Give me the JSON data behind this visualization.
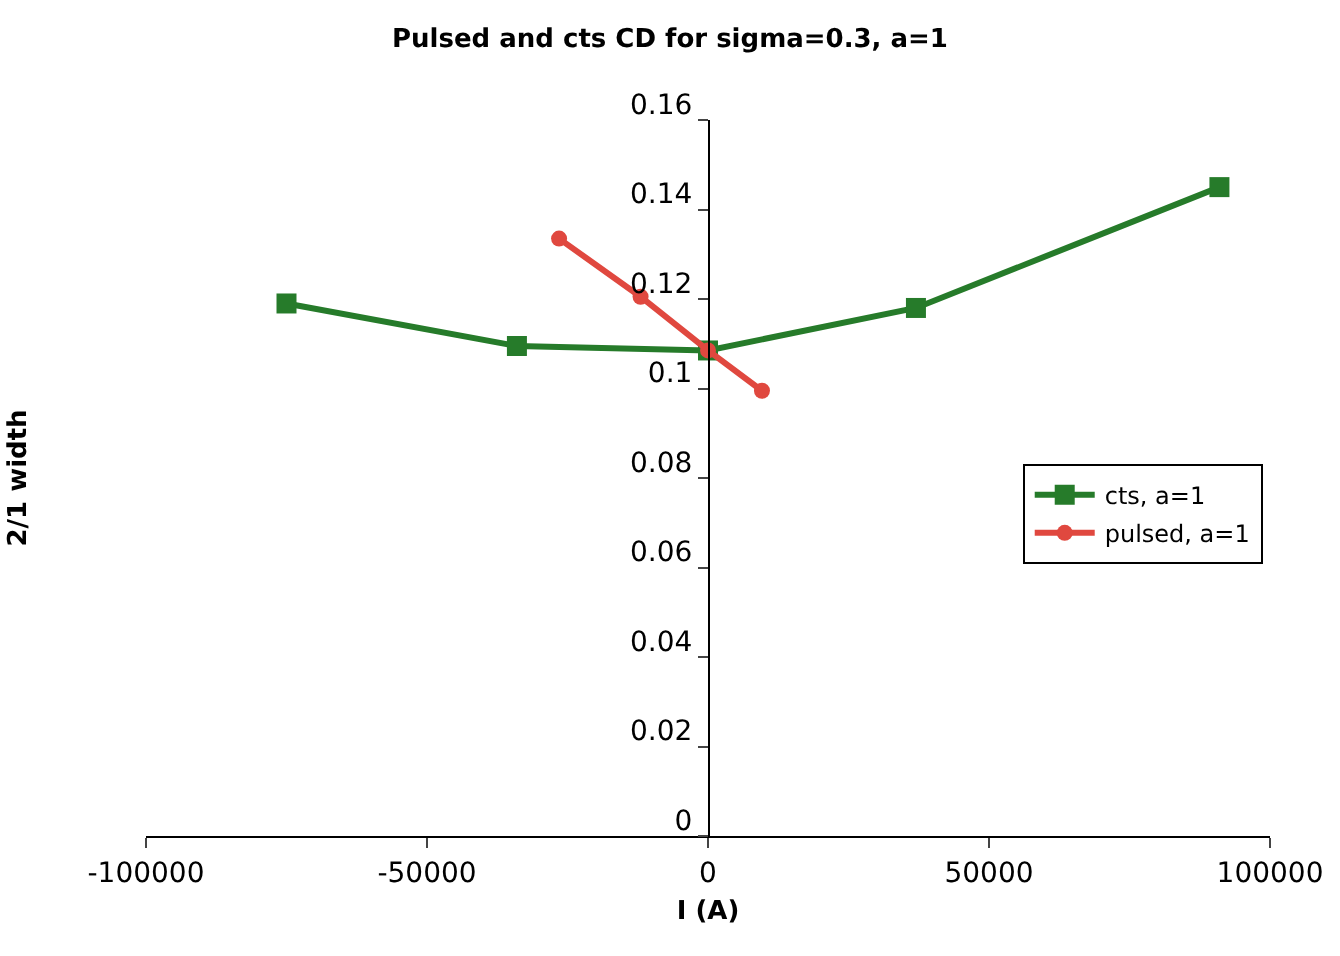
{
  "chart_data": {
    "type": "line",
    "title": "Pulsed and cts CD for sigma=0.3, a=1",
    "xlabel": "I (A)",
    "ylabel": "2/1 width",
    "series": [
      {
        "name": "cts, a=1",
        "color": "#267b2a",
        "marker": "square",
        "x": [
          -75000,
          -34000,
          0,
          37000,
          91000
        ],
        "values": [
          0.119,
          0.1095,
          0.1085,
          0.118,
          0.145
        ]
      },
      {
        "name": "pulsed, a=1",
        "color": "#e0483f",
        "marker": "circle",
        "x": [
          -26500,
          -12000,
          0,
          9600
        ],
        "values": [
          0.1335,
          0.1205,
          0.1085,
          0.0995
        ]
      }
    ],
    "xlim": [
      -100000,
      100000
    ],
    "xticks": [
      -100000,
      -50000,
      0,
      50000,
      100000
    ],
    "ylim": [
      0,
      0.16
    ],
    "yticks": [
      0,
      0.02,
      0.04,
      0.06,
      0.08,
      0.1,
      0.12,
      0.14,
      0.16
    ],
    "grid": false,
    "legend": "right",
    "line_style": "solid"
  }
}
